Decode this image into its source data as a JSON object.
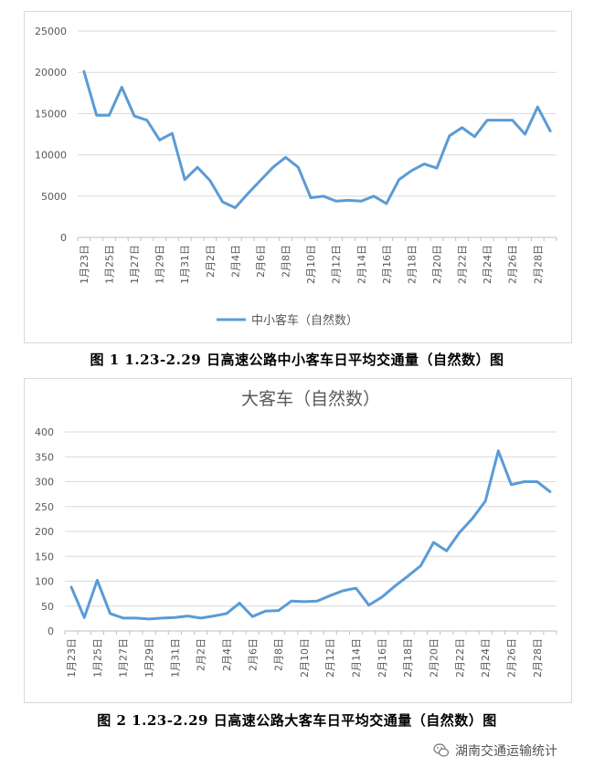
{
  "charts": [
    {
      "id": "chart1",
      "caption": "图 1  1.23-2.29 日高速公路中小客车日平均交通量（自然数）图",
      "chart_data": {
        "type": "line",
        "title": "",
        "x": [
          "1月23日",
          "1月24日",
          "1月25日",
          "1月26日",
          "1月27日",
          "1月28日",
          "1月29日",
          "1月30日",
          "1月31日",
          "2月1日",
          "2月2日",
          "2月3日",
          "2月4日",
          "2月5日",
          "2月6日",
          "2月7日",
          "2月8日",
          "2月9日",
          "2月10日",
          "2月11日",
          "2月12日",
          "2月13日",
          "2月14日",
          "2月15日",
          "2月16日",
          "2月17日",
          "2月18日",
          "2月19日",
          "2月20日",
          "2月21日",
          "2月22日",
          "2月23日",
          "2月24日",
          "2月25日",
          "2月26日",
          "2月27日",
          "2月28日",
          "2月29日"
        ],
        "xticks": [
          "1月23日",
          "1月25日",
          "1月27日",
          "1月29日",
          "1月31日",
          "2月2日",
          "2月4日",
          "2月6日",
          "2月8日",
          "2月10日",
          "2月12日",
          "2月14日",
          "2月16日",
          "2月18日",
          "2月20日",
          "2月22日",
          "2月24日",
          "2月26日",
          "2月28日"
        ],
        "series": [
          {
            "name": "中小客车（自然数）",
            "values": [
              20100,
              14800,
              14800,
              18200,
              14700,
              14200,
              11800,
              12600,
              7000,
              8500,
              6900,
              4300,
              3600,
              5300,
              6900,
              8500,
              9700,
              8500,
              4800,
              5000,
              4400,
              4500,
              4400,
              5000,
              4100,
              7000,
              8100,
              8900,
              8400,
              12300,
              13300,
              12200,
              14200,
              14200,
              14200,
              12500,
              15800,
              12900
            ]
          }
        ],
        "yticks": [
          0,
          5000,
          10000,
          15000,
          20000,
          25000
        ],
        "ylim": [
          0,
          25000
        ],
        "grid": true,
        "legend": "bottom",
        "color": "#5b9bd5"
      }
    },
    {
      "id": "chart2",
      "caption": "图 2  1.23-2.29 日高速公路大客车日平均交通量（自然数）图",
      "chart_data": {
        "type": "line",
        "title": "大客车（自然数）",
        "x": [
          "1月23日",
          "1月24日",
          "1月25日",
          "1月26日",
          "1月27日",
          "1月28日",
          "1月29日",
          "1月30日",
          "1月31日",
          "2月1日",
          "2月2日",
          "2月3日",
          "2月4日",
          "2月5日",
          "2月6日",
          "2月7日",
          "2月8日",
          "2月9日",
          "2月10日",
          "2月11日",
          "2月12日",
          "2月13日",
          "2月14日",
          "2月15日",
          "2月16日",
          "2月17日",
          "2月18日",
          "2月19日",
          "2月20日",
          "2月21日",
          "2月22日",
          "2月23日",
          "2月24日",
          "2月25日",
          "2月26日",
          "2月27日",
          "2月28日",
          "2月29日"
        ],
        "xticks": [
          "1月23日",
          "1月25日",
          "1月27日",
          "1月29日",
          "1月31日",
          "2月2日",
          "2月4日",
          "2月6日",
          "2月8日",
          "2月10日",
          "2月12日",
          "2月14日",
          "2月16日",
          "2月18日",
          "2月20日",
          "2月22日",
          "2月24日",
          "2月26日",
          "2月28日"
        ],
        "series": [
          {
            "name": "",
            "values": [
              88,
              27,
              102,
              35,
              26,
              26,
              24,
              26,
              27,
              30,
              26,
              30,
              35,
              56,
              29,
              40,
              41,
              60,
              59,
              60,
              71,
              81,
              86,
              52,
              68,
              90,
              110,
              131,
              178,
              161,
              198,
              226,
              261,
              362,
              294,
              300,
              300,
              280
            ]
          }
        ],
        "yticks": [
          0,
          50,
          100,
          150,
          200,
          250,
          300,
          350,
          400
        ],
        "ylim": [
          0,
          400
        ],
        "grid": true,
        "legend": "none",
        "color": "#5b9bd5"
      }
    }
  ],
  "watermark": {
    "text": "湖南交通运输统计",
    "icon": "wechat-icon"
  }
}
